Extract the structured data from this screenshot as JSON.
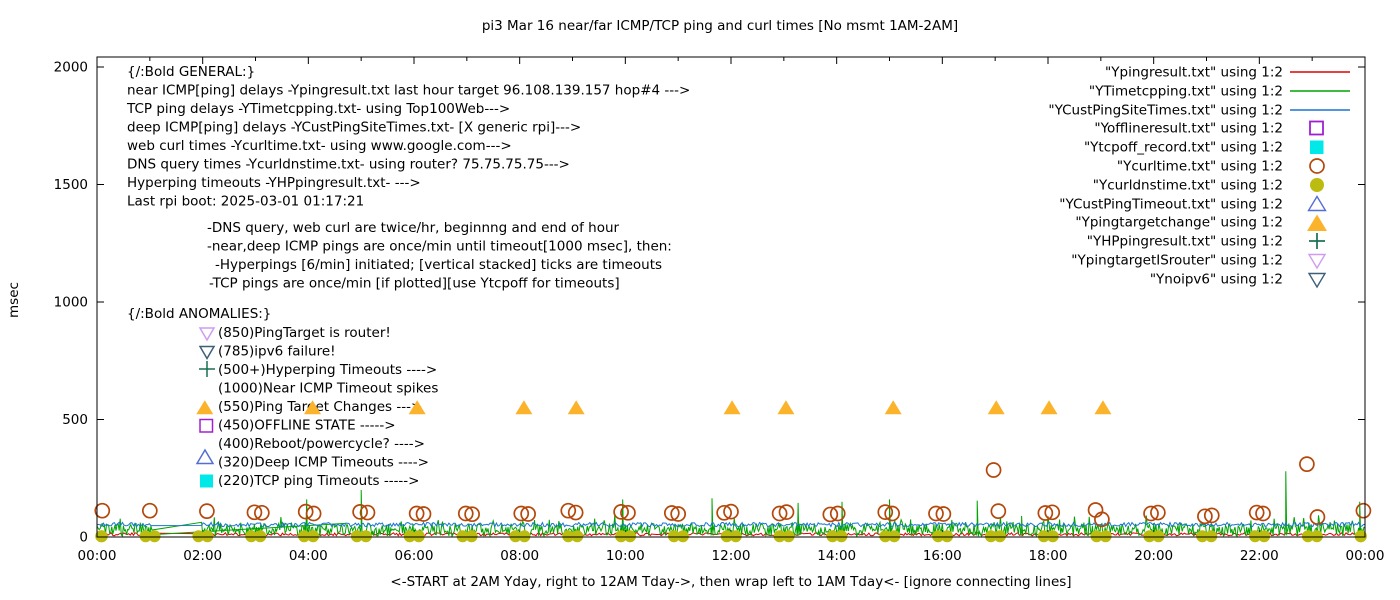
{
  "title": "pi3 Mar 16  near/far ICMP/TCP ping and curl times [No msmt 1AM-2AM]",
  "axes": {
    "y_label": "msec",
    "x_label": "<-START at 2AM Yday, right to 12AM Tday->, then wrap left to 1AM Tday<- [ignore connecting lines]",
    "y_ticks": [
      "0",
      "500",
      "1000",
      "1500",
      "2000"
    ],
    "x_ticks": [
      "00:00",
      "02:00",
      "04:00",
      "06:00",
      "08:00",
      "10:00",
      "12:00",
      "14:00",
      "16:00",
      "18:00",
      "20:00",
      "22:00",
      "00:00"
    ]
  },
  "general": {
    "lines": [
      "{/:Bold GENERAL:}",
      "near ICMP[ping] delays -Ypingresult.txt last hour target 96.108.139.157 hop#4 --->",
      "TCP ping delays -YTimetcpping.txt- using Top100Web--->",
      "deep ICMP[ping] delays -YCustPingSiteTimes.txt- [X generic rpi]--->",
      "web curl times -Ycurltime.txt- using www.google.com--->",
      "DNS query times -Ycurldnstime.txt- using router? 75.75.75.75--->",
      "Hyperping timeouts -YHPpingresult.txt- --->",
      "Last rpi boot: 2025-03-01 01:17:21",
      "-DNS query, web curl are twice/hr, beginnng and end of hour",
      "-near,deep ICMP pings are once/min until timeout[1000 msec], then:",
      "-Hyperpings [6/min] initiated; [vertical stacked] ticks are timeouts",
      "-TCP pings are once/min [if plotted][use Ytcpoff for timeouts]"
    ]
  },
  "anomalies": {
    "header": "{/:Bold ANOMALIES:}",
    "lines": [
      "(850)PingTarget is router!",
      "(785)ipv6 failure!",
      "(500+)Hyperping Timeouts ---->",
      "(1000)Near ICMP Timeout spikes",
      "(550)Ping Target Changes --->",
      "(450)OFFLINE STATE ----->",
      "(400)Reboot/powercycle? ---->",
      "(320)Deep ICMP Timeouts ---->",
      "(220)TCP ping Timeouts ----->"
    ]
  },
  "legend": {
    "items": [
      {
        "label": "\"Ypingresult.txt\" using 1:2",
        "marker": "line",
        "color": "#e10000"
      },
      {
        "label": "\"YTimetcpping.txt\" using 1:2",
        "marker": "line",
        "color": "#00a400"
      },
      {
        "label": "\"YCustPingSiteTimes.txt\" using 1:2",
        "marker": "line",
        "color": "#1874d2"
      },
      {
        "label": "\"Yofflineresult.txt\" using 1:2",
        "marker": "square-open",
        "color": "#a020d0"
      },
      {
        "label": "\"Ytcpoff_record.txt\" using 1:2",
        "marker": "square-filled",
        "color": "#00e8e8"
      },
      {
        "label": "\"Ycurltime.txt\" using 1:2",
        "marker": "circle-open",
        "color": "#b4470a"
      },
      {
        "label": "\"Ycurldnstime.txt\" using 1:2",
        "marker": "circle-filled",
        "color": "#bcbc10"
      },
      {
        "label": "\"YCustPingTimeout.txt\" using 1:2",
        "marker": "triangle-up-open",
        "color": "#546fd4"
      },
      {
        "label": "\"Ypingtargetchange\" using 1:2",
        "marker": "triangle-up-filled",
        "color": "#fcb32c"
      },
      {
        "label": "\"YHPpingresult.txt\" using 1:2",
        "marker": "plus",
        "color": "#176f51"
      },
      {
        "label": "\"YpingtargetISrouter\" using 1:2",
        "marker": "triangle-down-open",
        "color": "#cf9cf2"
      },
      {
        "label": "\"Ynoipv6\" using 1:2",
        "marker": "triangle-down-open",
        "color": "#3e5f78"
      }
    ]
  },
  "chart_data": {
    "type": "line",
    "title": "pi3 Mar 16  near/far ICMP/TCP ping and curl times [No msmt 1AM-2AM]",
    "xlabel": "<-START at 2AM Yday, right to 12AM Tday->, then wrap left to 1AM Tday<- [ignore connecting lines]",
    "ylabel": "msec",
    "x_range_hours": [
      0,
      24
    ],
    "ylim": [
      0,
      2000
    ],
    "x_tick_every_hours": 2,
    "y_tick_every": 500,
    "grid": false,
    "legend_position": "top-right",
    "gap_hours": [
      1.05,
      1.98
    ],
    "series": [
      {
        "name": "Ypingresult.txt",
        "style": "noise-line",
        "color": "#e10000",
        "desc": "near ICMP ping delay, ~5-18 msec jitter along entire x-range",
        "noise": [
          5,
          18
        ],
        "step": 0.03
      },
      {
        "name": "YTimetcpping.txt",
        "style": "noise-line",
        "color": "#00a400",
        "desc": "TCP ping delay, 0-60 msec jitter with occasional spikes",
        "noise": [
          3,
          58
        ],
        "step": 0.02,
        "spikes": [
          [
            3.97,
            160
          ],
          [
            5.0,
            200
          ],
          [
            9.95,
            160
          ],
          [
            11.64,
            165
          ],
          [
            13.27,
            145
          ],
          [
            14.1,
            150
          ],
          [
            15.0,
            160
          ],
          [
            16.66,
            155
          ],
          [
            17.5,
            90
          ],
          [
            22.5,
            280
          ],
          [
            23.9,
            150
          ]
        ]
      },
      {
        "name": "YCustPingSiteTimes.txt",
        "style": "noise-line",
        "color": "#1874d2",
        "desc": "deep ICMP ping delay, steady ~45-62 msec band",
        "noise": [
          44,
          62
        ],
        "step": 0.03
      },
      {
        "name": "Ycurltime.txt",
        "style": "circle-open",
        "color": "#b4470a",
        "desc": "web curl times, twice per hour ~100 msec; anomalies ~285 msec @17:00 and ~310 msec @23:00",
        "points": [
          [
            0.1,
            112
          ],
          [
            1.0,
            112
          ],
          [
            2.08,
            110
          ],
          [
            2.98,
            105
          ],
          [
            3.12,
            103
          ],
          [
            3.95,
            108
          ],
          [
            4.1,
            100
          ],
          [
            4.98,
            107
          ],
          [
            5.12,
            104
          ],
          [
            6.05,
            100
          ],
          [
            6.18,
            98
          ],
          [
            6.98,
            100
          ],
          [
            7.1,
            97
          ],
          [
            8.03,
            100
          ],
          [
            8.16,
            98
          ],
          [
            8.92,
            112
          ],
          [
            9.06,
            104
          ],
          [
            9.92,
            107
          ],
          [
            10.05,
            103
          ],
          [
            10.88,
            102
          ],
          [
            11.0,
            98
          ],
          [
            11.87,
            103
          ],
          [
            12.0,
            108
          ],
          [
            12.92,
            100
          ],
          [
            13.05,
            106
          ],
          [
            13.88,
            96
          ],
          [
            14.02,
            100
          ],
          [
            14.92,
            106
          ],
          [
            15.05,
            100
          ],
          [
            15.88,
            100
          ],
          [
            16.02,
            98
          ],
          [
            16.97,
            285
          ],
          [
            17.06,
            110
          ],
          [
            17.95,
            102
          ],
          [
            18.08,
            105
          ],
          [
            18.9,
            115
          ],
          [
            19.02,
            75
          ],
          [
            19.95,
            100
          ],
          [
            20.08,
            104
          ],
          [
            20.97,
            88
          ],
          [
            21.1,
            92
          ],
          [
            21.95,
            104
          ],
          [
            22.07,
            100
          ],
          [
            22.9,
            310
          ],
          [
            23.1,
            85
          ],
          [
            23.97,
            112
          ]
        ]
      },
      {
        "name": "Ycurldnstime.txt",
        "style": "dns-dots",
        "color": "#bcbc10",
        "desc": "DNS query times, pair of dots near 0 msec at every hour mark",
        "hours": [
          0,
          1,
          2,
          3,
          4,
          5,
          6,
          7,
          8,
          9,
          10,
          11,
          12,
          13,
          14,
          15,
          16,
          17,
          18,
          19,
          20,
          21,
          22,
          23,
          24
        ],
        "value": 3
      },
      {
        "name": "Ypingtargetchange",
        "style": "triangle-up-filled",
        "color": "#fcb32c",
        "desc": "ping target change events plotted at 550 msec",
        "points": [
          [
            2.04,
            550
          ],
          [
            4.08,
            550
          ],
          [
            6.06,
            550
          ],
          [
            8.08,
            550
          ],
          [
            9.07,
            550
          ],
          [
            12.02,
            550
          ],
          [
            13.04,
            550
          ],
          [
            15.07,
            550
          ],
          [
            17.02,
            550
          ],
          [
            18.02,
            550
          ],
          [
            19.04,
            550
          ]
        ]
      }
    ],
    "connecting_line": {
      "color": "#00a400",
      "from": [
        1.06,
        10
      ],
      "to": [
        4.7,
        58
      ],
      "desc": "stray connecting line across the 1AM-2AM no-measurement gap (to be ignored)"
    }
  }
}
